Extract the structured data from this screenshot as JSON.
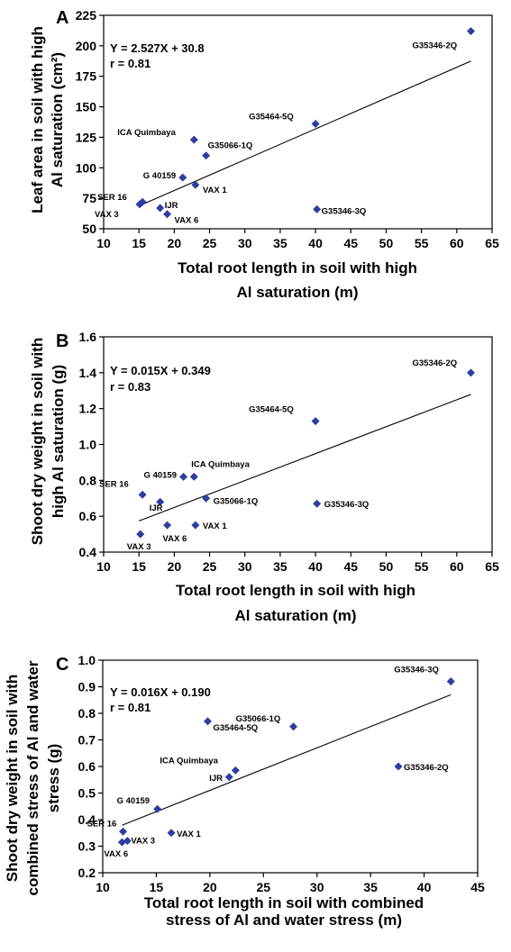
{
  "chart_data": [
    {
      "type": "scatter",
      "panel": "A",
      "xlim": [
        10,
        65
      ],
      "ylim": [
        50,
        225
      ],
      "xticks": [
        "10",
        "15",
        "20",
        "25",
        "30",
        "35",
        "40",
        "45",
        "50",
        "55",
        "60",
        "65"
      ],
      "yticks": [
        "50",
        "75",
        "100",
        "125",
        "150",
        "175",
        "200",
        "225"
      ],
      "xlabel_lines": [
        "Total root length in soil with high",
        "Al saturation (m)"
      ],
      "ylabel_lines": [
        "Leaf area in soil with high",
        "Al saturation (cm²)"
      ],
      "equation": "Y = 2.527X + 30.8",
      "r_text": "r = 0.81",
      "trendline": {
        "slope": 2.527,
        "intercept": 30.8,
        "x_from": 15,
        "x_to": 62
      },
      "points": [
        {
          "label": "G35346-2Q",
          "x": 62,
          "y": 212
        },
        {
          "label": "G35464-5Q",
          "x": 40,
          "y": 136
        },
        {
          "label": "ICA Quimbaya",
          "x": 22.8,
          "y": 123
        },
        {
          "label": "G35066-1Q",
          "x": 24.5,
          "y": 110
        },
        {
          "label": "G 40159",
          "x": 21.2,
          "y": 92
        },
        {
          "label": "VAX 1",
          "x": 23,
          "y": 86
        },
        {
          "label": "SER 16",
          "x": 15.5,
          "y": 72
        },
        {
          "label": "VAX 3",
          "x": 15.1,
          "y": 70
        },
        {
          "label": "IJR",
          "x": 18,
          "y": 67
        },
        {
          "label": "VAX 6",
          "x": 19,
          "y": 62
        },
        {
          "label": "G35346-3Q",
          "x": 40.2,
          "y": 66
        }
      ]
    },
    {
      "type": "scatter",
      "panel": "B",
      "xlim": [
        10,
        65
      ],
      "ylim": [
        0.4,
        1.6
      ],
      "xticks": [
        "10",
        "15",
        "20",
        "25",
        "30",
        "35",
        "40",
        "45",
        "50",
        "55",
        "60",
        "65"
      ],
      "yticks": [
        "0.4",
        "0.6",
        "0.8",
        "1.0",
        "1.2",
        "1.4",
        "1.6"
      ],
      "xlabel_lines": [
        "Total root length in soil with high",
        "Al saturation (m)"
      ],
      "ylabel_lines": [
        "Shoot dry weight in soil with",
        "high Al saturation (g)"
      ],
      "equation": "Y = 0.015X + 0.349",
      "r_text": "r = 0.83",
      "trendline": {
        "slope": 0.015,
        "intercept": 0.349,
        "x_from": 15,
        "x_to": 62
      },
      "points": [
        {
          "label": "G35346-2Q",
          "x": 62,
          "y": 1.4
        },
        {
          "label": "G35464-5Q",
          "x": 40,
          "y": 1.13
        },
        {
          "label": "ICA Quimbaya",
          "x": 22.8,
          "y": 0.82
        },
        {
          "label": "G 40159",
          "x": 21.3,
          "y": 0.82
        },
        {
          "label": "SER 16",
          "x": 15.5,
          "y": 0.72
        },
        {
          "label": "G35066-1Q",
          "x": 24.5,
          "y": 0.7
        },
        {
          "label": "IJR",
          "x": 18,
          "y": 0.68
        },
        {
          "label": "G35346-3Q",
          "x": 40.2,
          "y": 0.67
        },
        {
          "label": "VAX 6",
          "x": 19,
          "y": 0.55
        },
        {
          "label": "VAX 1",
          "x": 23,
          "y": 0.55
        },
        {
          "label": "VAX 3",
          "x": 15.2,
          "y": 0.5
        }
      ]
    },
    {
      "type": "scatter",
      "panel": "C",
      "xlim": [
        10,
        45
      ],
      "ylim": [
        0.2,
        1.0
      ],
      "xticks": [
        "10",
        "15",
        "20",
        "25",
        "30",
        "35",
        "40",
        "45"
      ],
      "yticks": [
        "0.2",
        "0.3",
        "0.4",
        "0.5",
        "0.6",
        "0.7",
        "0.8",
        "0.9",
        "1.0"
      ],
      "xlabel_lines": [
        "Total root length in soil with combined",
        "stress of Al and water stress  (m)"
      ],
      "ylabel_lines": [
        "Shoot dry weight in soil with",
        "combined stress of Al and water",
        "stress (g)"
      ],
      "equation": "Y = 0.016X + 0.190",
      "r_text": "r = 0.81",
      "trendline": {
        "slope": 0.016,
        "intercept": 0.19,
        "x_from": 11.8,
        "x_to": 42.5
      },
      "points": [
        {
          "label": "G35346-3Q",
          "x": 42.5,
          "y": 0.92
        },
        {
          "label": "G35464-5Q",
          "x": 19.8,
          "y": 0.77
        },
        {
          "label": "G35066-1Q",
          "x": 27.8,
          "y": 0.75
        },
        {
          "label": "G35346-2Q",
          "x": 37.6,
          "y": 0.6
        },
        {
          "label": "ICA Quimbaya",
          "x": 22.4,
          "y": 0.585
        },
        {
          "label": "IJR",
          "x": 21.8,
          "y": 0.56
        },
        {
          "label": "G 40159",
          "x": 15.1,
          "y": 0.44
        },
        {
          "label": "SER 16",
          "x": 11.9,
          "y": 0.355
        },
        {
          "label": "VAX 1",
          "x": 16.4,
          "y": 0.35
        },
        {
          "label": "VAX 3",
          "x": 12.3,
          "y": 0.32
        },
        {
          "label": "VAX 6",
          "x": 11.8,
          "y": 0.315
        }
      ]
    }
  ],
  "colors": {
    "marker": "#2E3DA0",
    "axis": "#000000",
    "text": "#000000",
    "background": "#ffffff"
  }
}
